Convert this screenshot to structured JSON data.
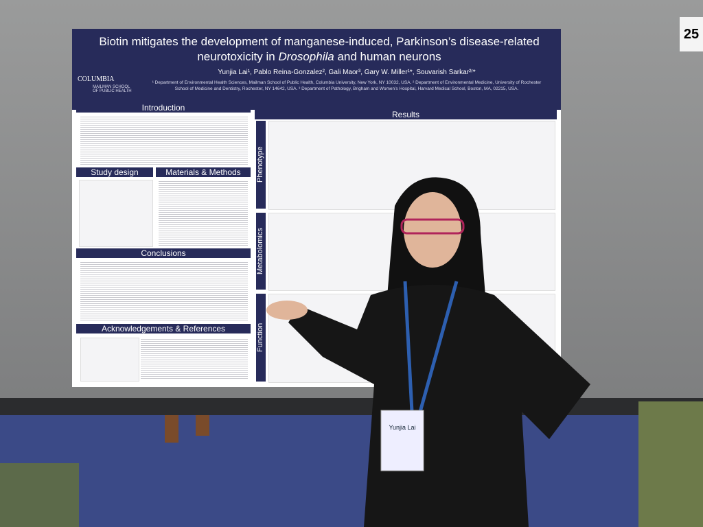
{
  "poster": {
    "title": [
      "Biotin mitigates the development of manganese-induced, Parkinson’s disease-related neurotoxicity in ",
      "Drosophila",
      " and human neurons"
    ],
    "authors": "Yunjia Lai¹, Pablo Reina-Gonzalez², Gali Maor³, Gary W. Miller¹*, Souvarish Sarkar²ʳ*",
    "affiliations": "¹ Department of Environmental Health Sciences, Mailman School of Public Health, Columbia University, New York, NY 10032, USA. ² Department of Environmental Medicine, University of Rochester School of Medicine and Dentistry, Rochester, NY 14642, USA. ³ Department of Pathology, Brigham and Women’s Hospital, Harvard Medical School, Boston, MA, 02215, USA.",
    "logo": {
      "name": "COLUMBIA",
      "school": "MAILMAN SCHOOL OF PUBLIC HEALTH"
    },
    "sections": {
      "introduction": "Introduction",
      "study_design": "Study design",
      "methods": "Materials & Methods",
      "conclusions": "Conclusions",
      "acknowledgements": "Acknowledgements & References",
      "results": "Results"
    },
    "results_rows": [
      "Phenotype",
      "Metabolomics",
      "Function"
    ]
  },
  "board_number": "25",
  "badge_name": "Yunjia Lai"
}
